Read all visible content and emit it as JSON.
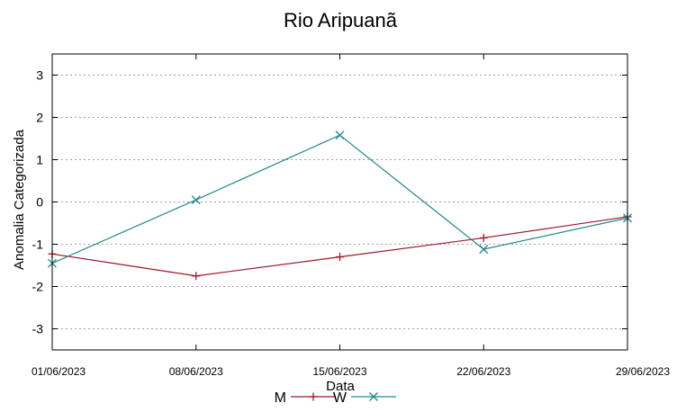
{
  "chart_data": {
    "type": "line",
    "title": "Rio Aripuanã",
    "xlabel": "Data",
    "ylabel": "Anomalia Categorizada",
    "categories": [
      "01/06/2023",
      "08/06/2023",
      "15/06/2023",
      "22/06/2023",
      "29/06/2023"
    ],
    "ylim": [
      -3.5,
      3.5
    ],
    "yticks": [
      -3,
      -2,
      -1,
      0,
      1,
      2,
      3
    ],
    "grid": true,
    "legend_position": "bottom",
    "series": [
      {
        "name": "M",
        "color": "#a0142a",
        "marker": "plus",
        "values": [
          -1.23,
          -1.75,
          -1.3,
          -0.85,
          -0.35
        ]
      },
      {
        "name": "W",
        "color": "#1f8a8a",
        "marker": "cross",
        "values": [
          -1.45,
          0.05,
          1.58,
          -1.12,
          -0.38
        ]
      }
    ]
  }
}
